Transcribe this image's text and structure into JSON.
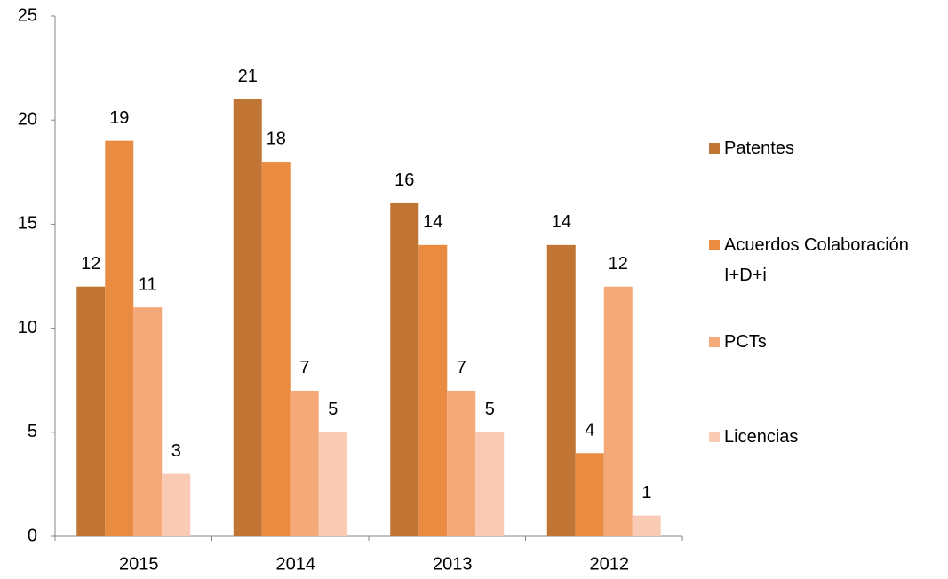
{
  "chart_data": {
    "type": "bar",
    "categories": [
      "2015",
      "2014",
      "2013",
      "2012"
    ],
    "series": [
      {
        "name": "Patentes",
        "color": "#c07534",
        "values": [
          12,
          21,
          16,
          14
        ]
      },
      {
        "name": "Acuerdos Colaboración I+D+i",
        "color": "#e98c42",
        "values": [
          19,
          18,
          14,
          4
        ]
      },
      {
        "name": "PCTs",
        "color": "#f5a878",
        "values": [
          11,
          7,
          7,
          12
        ]
      },
      {
        "name": "Licencias",
        "color": "#f9cbb5",
        "values": [
          3,
          5,
          5,
          1
        ]
      }
    ],
    "ylim": [
      0,
      25
    ],
    "yticks": [
      0,
      5,
      10,
      15,
      20,
      25
    ],
    "grid": false,
    "legend": "right"
  }
}
